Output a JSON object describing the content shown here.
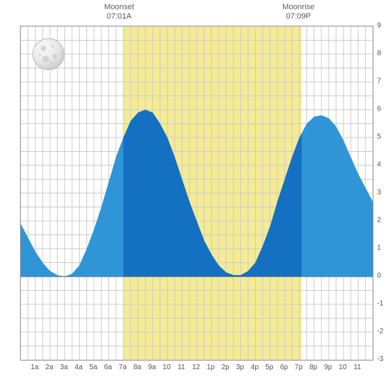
{
  "chart": {
    "type": "area-tide",
    "background_color": "#ffffff",
    "grid_color": "#cccccc",
    "axis_color": "#9e9e9e",
    "zero_line_color": "#808080",
    "tide_fill": "#2f95d6",
    "tide_under_daylight": "#1470c0",
    "daylight_color": "#f4eb94",
    "text_color": "#606060",
    "font_family": "Arial",
    "label_fontsize": 10,
    "annot_fontsize": 11,
    "x": {
      "min": 0,
      "max": 24,
      "tick_step_minor": 0.5,
      "tick_labels": [
        "1a",
        "2a",
        "3a",
        "4a",
        "5a",
        "6a",
        "7a",
        "8a",
        "9a",
        "10",
        "11",
        "12",
        "1p",
        "2p",
        "3p",
        "4p",
        "5p",
        "6p",
        "7p",
        "8p",
        "9p",
        "10",
        "11"
      ],
      "tick_positions": [
        1,
        2,
        3,
        4,
        5,
        6,
        7,
        8,
        9,
        10,
        11,
        12,
        13,
        14,
        15,
        16,
        17,
        18,
        19,
        20,
        21,
        22,
        23
      ]
    },
    "y": {
      "min": -3,
      "max": 9,
      "tick_step_major": 1,
      "tick_step_minor": 0.5,
      "tick_labels": [
        "-3",
        "-2",
        "-1",
        "0",
        "1",
        "2",
        "3",
        "4",
        "5",
        "6",
        "7",
        "8",
        "9"
      ],
      "tick_positions": [
        -3,
        -2,
        -1,
        0,
        1,
        2,
        3,
        4,
        5,
        6,
        7,
        8,
        9
      ]
    },
    "daylight_band": {
      "start_hr": 7.0,
      "end_hr": 19.15
    },
    "tide_points": [
      [
        0,
        1.9
      ],
      [
        0.5,
        1.4
      ],
      [
        1,
        0.9
      ],
      [
        1.5,
        0.5
      ],
      [
        2,
        0.2
      ],
      [
        2.5,
        0.05
      ],
      [
        3,
        0.0
      ],
      [
        3.5,
        0.1
      ],
      [
        4,
        0.4
      ],
      [
        4.5,
        1.0
      ],
      [
        5,
        1.7
      ],
      [
        5.5,
        2.5
      ],
      [
        6,
        3.4
      ],
      [
        6.5,
        4.3
      ],
      [
        7,
        5.0
      ],
      [
        7.5,
        5.6
      ],
      [
        8,
        5.9
      ],
      [
        8.5,
        6.0
      ],
      [
        9,
        5.9
      ],
      [
        9.5,
        5.5
      ],
      [
        10,
        5.0
      ],
      [
        10.5,
        4.3
      ],
      [
        11,
        3.5
      ],
      [
        11.5,
        2.7
      ],
      [
        12,
        2.0
      ],
      [
        12.5,
        1.3
      ],
      [
        13,
        0.8
      ],
      [
        13.5,
        0.4
      ],
      [
        14,
        0.15
      ],
      [
        14.5,
        0.05
      ],
      [
        15,
        0.05
      ],
      [
        15.5,
        0.2
      ],
      [
        16,
        0.5
      ],
      [
        16.5,
        1.1
      ],
      [
        17,
        1.8
      ],
      [
        17.5,
        2.7
      ],
      [
        18,
        3.5
      ],
      [
        18.5,
        4.3
      ],
      [
        19,
        5.0
      ],
      [
        19.5,
        5.5
      ],
      [
        20,
        5.75
      ],
      [
        20.5,
        5.8
      ],
      [
        21,
        5.7
      ],
      [
        21.5,
        5.4
      ],
      [
        22,
        4.9
      ],
      [
        22.5,
        4.3
      ],
      [
        23,
        3.7
      ],
      [
        23.5,
        3.2
      ],
      [
        24,
        2.7
      ]
    ],
    "annotations": [
      {
        "name": "moonset",
        "title": "Moonset",
        "time": "07:01A",
        "hr": 7.0
      },
      {
        "name": "moonrise",
        "title": "Moonrise",
        "time": "07:09P",
        "hr": 19.15
      }
    ],
    "moon_icon": {
      "name": "full-moon-icon",
      "face": "#ececec",
      "shadow": "#cfcfcf",
      "crater": "#d0d0d0"
    }
  }
}
